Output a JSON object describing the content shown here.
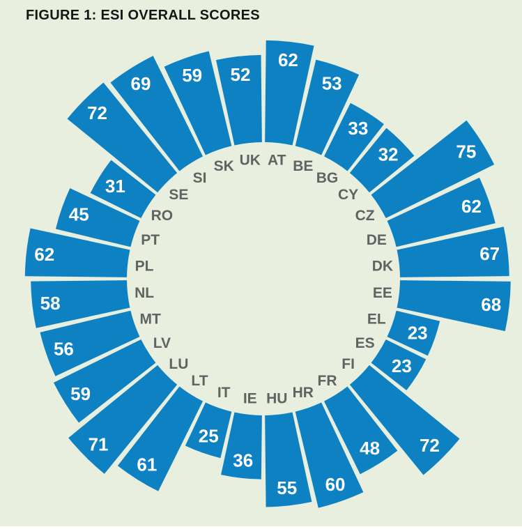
{
  "header": {
    "title": "FIGURE 1: ESI OVERALL SCORES"
  },
  "colors": {
    "background": "#e8efde",
    "bar": "#0d81c2",
    "country_label": "#626262",
    "value_label": "#ffffff",
    "title_text": "#161616"
  },
  "chart_data": {
    "type": "bar",
    "layout": "radial",
    "title": "FIGURE 1: ESI OVERALL SCORES",
    "categories": [
      "AT",
      "BE",
      "BG",
      "CY",
      "CZ",
      "DE",
      "DK",
      "EE",
      "EL",
      "ES",
      "FI",
      "FR",
      "HR",
      "HU",
      "IE",
      "IT",
      "LT",
      "LU",
      "LV",
      "MT",
      "NL",
      "PL",
      "PT",
      "RO",
      "SE",
      "SI",
      "SK",
      "UK"
    ],
    "values": [
      62,
      53,
      33,
      32,
      75,
      62,
      67,
      68,
      23,
      23,
      72,
      48,
      60,
      55,
      36,
      25,
      61,
      71,
      59,
      56,
      58,
      62,
      45,
      31,
      72,
      69,
      59,
      52
    ],
    "series_name": "ESI overall score",
    "value_range": [
      0,
      100
    ],
    "order": "clockwise from top",
    "legend": "none",
    "data_labels": "value shown in white at outer end of each bar, country code inside inner ring",
    "grid": false
  }
}
